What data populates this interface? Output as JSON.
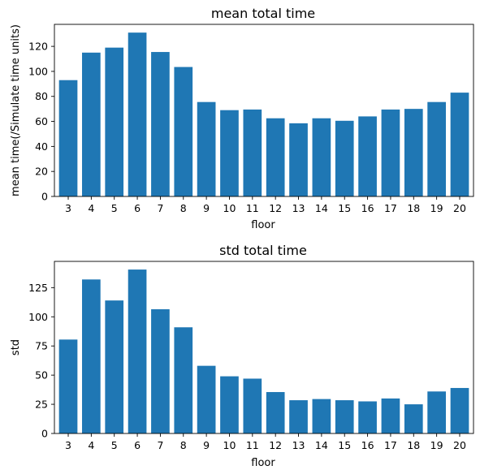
{
  "colors": {
    "bar": "#1f77b4",
    "axis": "#000000",
    "background": "#ffffff"
  },
  "chart_data": [
    {
      "type": "bar",
      "title": "mean total time",
      "xlabel": "floor",
      "ylabel": "mean time(/Simulate time units)",
      "categories": [
        "3",
        "4",
        "5",
        "6",
        "7",
        "8",
        "9",
        "10",
        "11",
        "12",
        "13",
        "14",
        "15",
        "16",
        "17",
        "18",
        "19",
        "20"
      ],
      "values": [
        93,
        115,
        119,
        131,
        115.5,
        103.5,
        75.5,
        69,
        69.5,
        62.5,
        58.5,
        62.5,
        60.5,
        64,
        69.5,
        70,
        75.5,
        83
      ],
      "ylim": [
        0,
        137.6
      ],
      "yticks": [
        0,
        20,
        40,
        60,
        80,
        100,
        120
      ],
      "ytick_labels": [
        "0",
        "20",
        "40",
        "60",
        "80",
        "100",
        "120"
      ],
      "grid": false,
      "legend": "none"
    },
    {
      "type": "bar",
      "title": "std total time",
      "xlabel": "floor",
      "ylabel": "std",
      "categories": [
        "3",
        "4",
        "5",
        "6",
        "7",
        "8",
        "9",
        "10",
        "11",
        "12",
        "13",
        "14",
        "15",
        "16",
        "17",
        "18",
        "19",
        "20"
      ],
      "values": [
        80.5,
        132,
        114,
        140.5,
        106.5,
        91,
        58,
        49,
        47,
        35.5,
        28.5,
        29.5,
        28.5,
        27.5,
        30,
        25,
        36,
        39
      ],
      "ylim": [
        0,
        147.5
      ],
      "yticks": [
        0,
        25,
        50,
        75,
        100,
        125
      ],
      "ytick_labels": [
        "0",
        "25",
        "50",
        "75",
        "100",
        "125"
      ],
      "grid": false,
      "legend": "none"
    }
  ]
}
